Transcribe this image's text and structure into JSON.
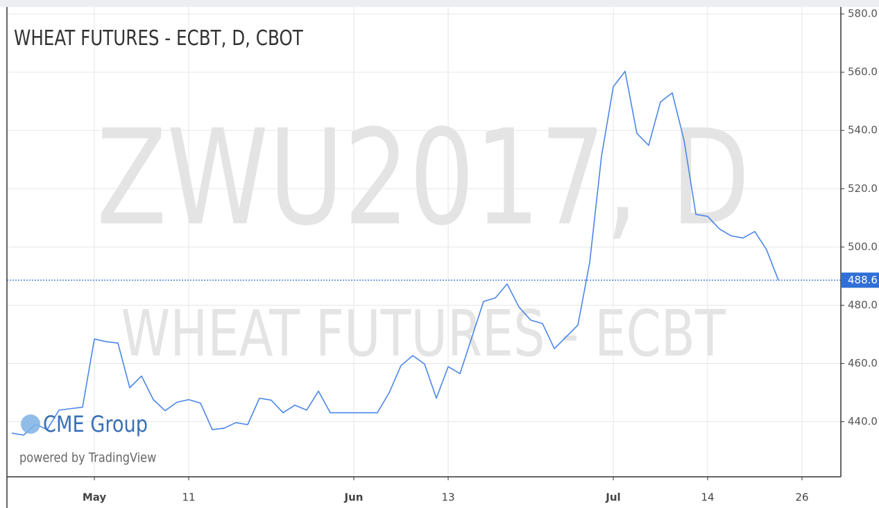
{
  "chart_data": {
    "type": "line",
    "title": "WHEAT FUTURES - ECBT, D, CBOT",
    "watermark": [
      "ZWU2017, D",
      "WHEAT FUTURES - ECBT"
    ],
    "branding": {
      "logo": "CME Group",
      "powered_by": "powered by TradingView"
    },
    "categories": [
      null,
      null,
      null,
      null,
      null,
      null,
      null,
      "May",
      null,
      null,
      null,
      null,
      null,
      null,
      null,
      "11",
      null,
      null,
      null,
      null,
      null,
      null,
      null,
      null,
      null,
      null,
      null,
      null,
      null,
      "Jun",
      null,
      null,
      null,
      null,
      null,
      null,
      null,
      "13",
      null,
      null,
      null,
      null,
      null,
      null,
      null,
      null,
      null,
      null,
      null,
      null,
      null,
      "Jul",
      null,
      null,
      null,
      null,
      null,
      null,
      null,
      "14",
      null,
      null,
      null,
      null,
      null,
      null,
      null,
      "26"
    ],
    "series": [
      {
        "name": "ZWU2017",
        "color": "#4a86e8",
        "values": [
          436.1,
          435.4,
          439.2,
          437.3,
          444.0,
          444.5,
          445.0,
          468.4,
          467.5,
          467.0,
          451.7,
          455.7,
          447.6,
          443.8,
          446.7,
          447.6,
          446.4,
          437.3,
          437.8,
          439.7,
          439.0,
          448.1,
          447.4,
          443.1,
          445.7,
          444.0,
          450.5,
          443.1,
          443.1,
          443.1,
          443.1,
          443.1,
          450.0,
          459.3,
          462.7,
          459.8,
          448.1,
          458.9,
          456.5,
          468.9,
          481.3,
          482.5,
          487.3,
          479.4,
          474.9,
          473.7,
          465.1,
          469.1,
          473.2,
          494.7,
          531.1,
          555.0,
          560.3,
          539.0,
          534.9,
          549.8,
          552.9,
          536.6,
          511.2,
          510.5,
          506.2,
          503.8,
          503.1,
          505.3,
          499.0,
          488.6,
          null,
          null
        ]
      }
    ],
    "last_price": 488.6,
    "last_price_color": "#2f6fd6",
    "ylim": [
      421.1,
      582.4
    ],
    "yticks": [
      {
        "value": 440,
        "label": "440.0"
      },
      {
        "value": 460,
        "label": "460.0"
      },
      {
        "value": 480,
        "label": "480.0"
      },
      {
        "value": 500,
        "label": "500.0"
      },
      {
        "value": 520,
        "label": "520.0"
      },
      {
        "value": 540,
        "label": "540.0"
      },
      {
        "value": 560,
        "label": "560.0"
      },
      {
        "value": 580,
        "label": "580.0"
      }
    ],
    "grid": true
  }
}
